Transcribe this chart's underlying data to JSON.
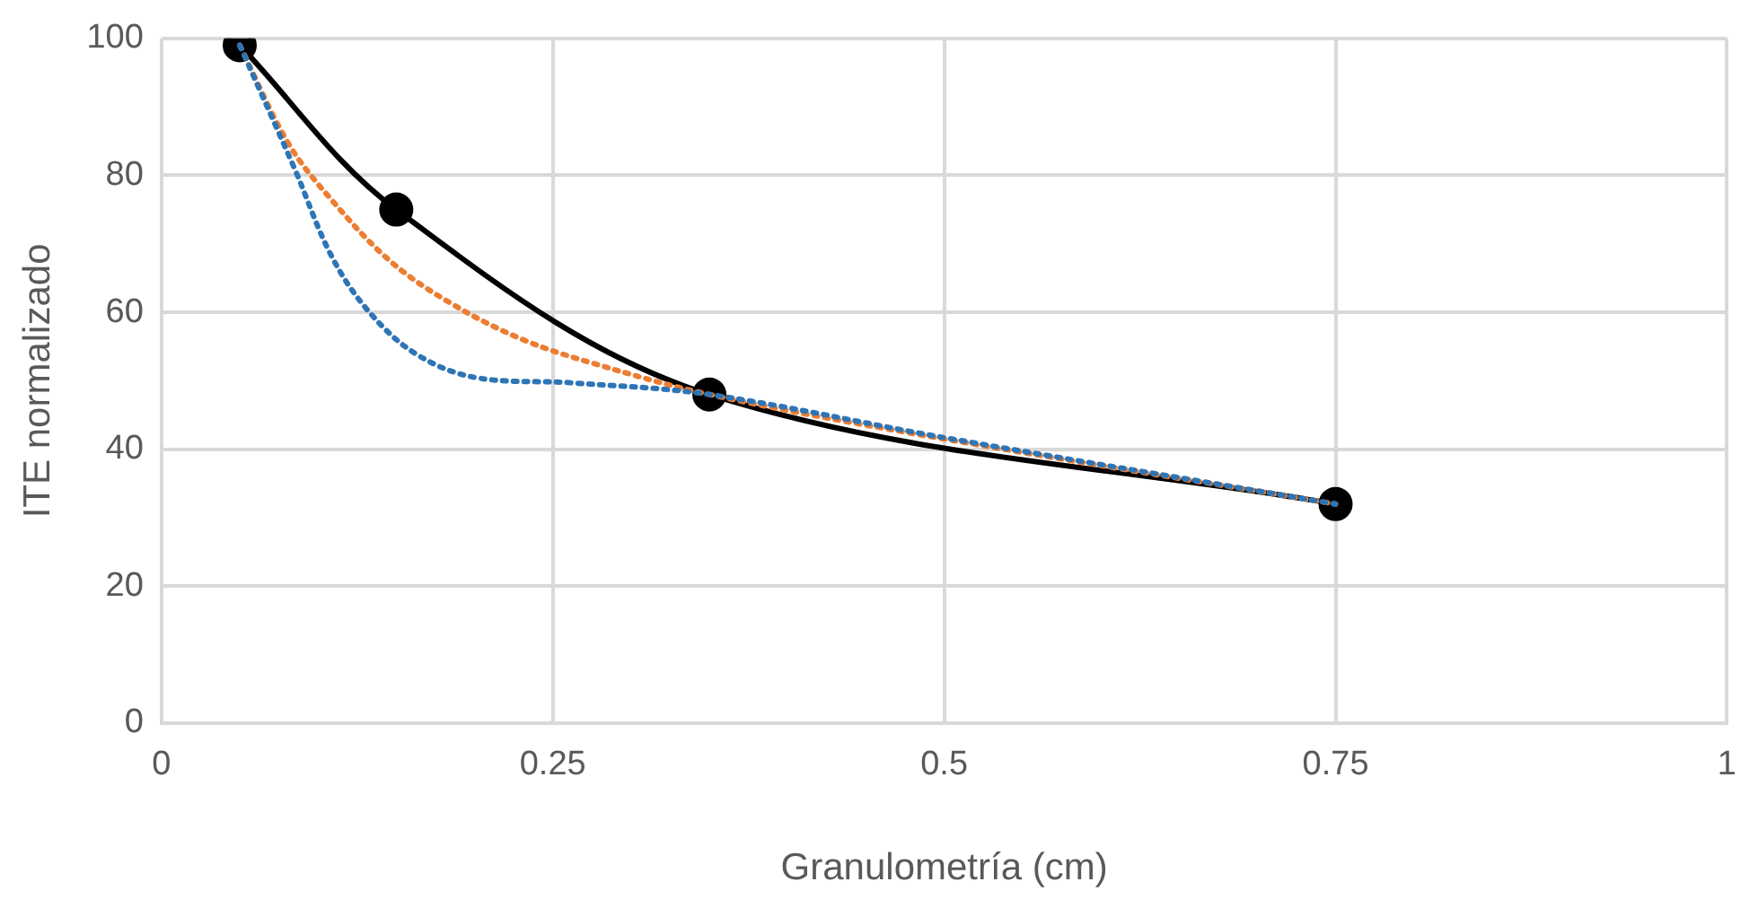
{
  "chart_data": {
    "type": "line",
    "xlabel": "Granulometría (cm)",
    "ylabel": "ITE normalizado",
    "xlim": [
      0,
      1
    ],
    "xticks": [
      0,
      0.25,
      0.5,
      0.75,
      1
    ],
    "ylim": [
      0,
      100
    ],
    "yticks": [
      0,
      20,
      40,
      60,
      80,
      100
    ],
    "grid": true,
    "legend": false,
    "series": [
      {
        "color": "#2e75b6",
        "line_style": "dotted",
        "marker": "none",
        "x": [
          0.05,
          0.085,
          0.108,
          0.131,
          0.162,
          0.2,
          0.262,
          0.35,
          0.5,
          0.75
        ],
        "values": [
          99,
          81,
          68.5,
          60.5,
          54,
          50.5,
          49.7,
          48,
          41.7,
          32
        ]
      },
      {
        "color": "#ed7d31",
        "line_style": "dotted",
        "marker": "none",
        "x": [
          0.05,
          0.081,
          0.108,
          0.146,
          0.185,
          0.231,
          0.278,
          0.35,
          0.5,
          0.75
        ],
        "values": [
          99,
          84.7,
          76.6,
          67.5,
          61.3,
          56,
          52.4,
          48,
          41.5,
          32
        ]
      },
      {
        "color": "#000000",
        "line_style": "solid",
        "marker": "circle",
        "x": [
          0.05,
          0.15,
          0.35,
          0.75
        ],
        "values": [
          99,
          75,
          48,
          32
        ]
      }
    ]
  }
}
